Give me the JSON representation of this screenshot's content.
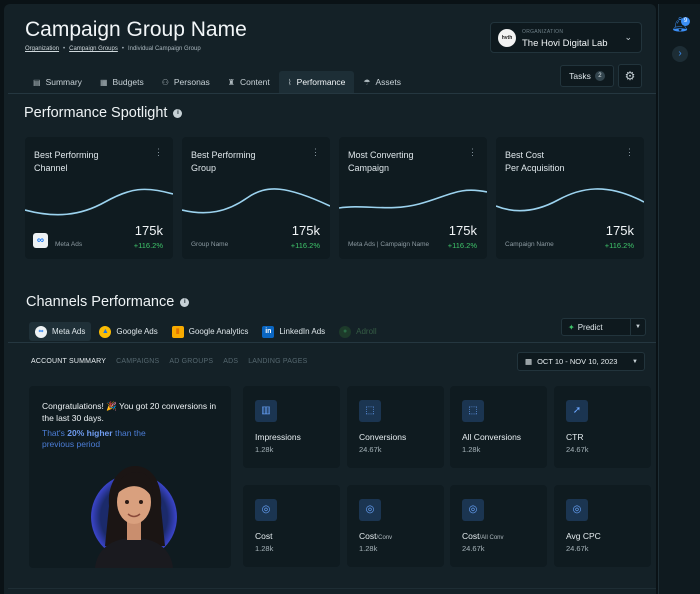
{
  "header": {
    "title": "Campaign Group Name",
    "breadcrumbs": [
      "Organization",
      "Campaign Groups",
      "Individual Campaign Group"
    ],
    "org_caption": "ORGANIZATION",
    "org_logo": "hvth",
    "org_name": "The Hovi Digital Lab"
  },
  "tabs": [
    {
      "label": "Summary",
      "icon": "summary-icon"
    },
    {
      "label": "Budgets",
      "icon": "budget-icon"
    },
    {
      "label": "Personas",
      "icon": "personas-icon"
    },
    {
      "label": "Content",
      "icon": "content-icon"
    },
    {
      "label": "Performance",
      "icon": "performance-icon",
      "active": true
    },
    {
      "label": "Assets",
      "icon": "assets-icon"
    }
  ],
  "tasks": {
    "label": "Tasks",
    "count": "2"
  },
  "spotlight": {
    "title": "Performance Spotlight",
    "cards": [
      {
        "line1": "Best Performing",
        "line2": "Channel",
        "value": "175k",
        "change": "+116.2%",
        "sub": "Meta Ads"
      },
      {
        "line1": "Best Performing",
        "line2": "Group",
        "value": "175k",
        "change": "+116.2%",
        "sub": "Group Name"
      },
      {
        "line1": "Most Converting",
        "line2": "Campaign",
        "value": "175k",
        "change": "+116.2%",
        "sub": "Meta Ads | Campaign Name"
      },
      {
        "line1": "Best Cost",
        "line2": "Per Acquisition",
        "value": "175k",
        "change": "+116.2%",
        "sub": "Campaign Name"
      }
    ]
  },
  "channels": {
    "title": "Channels Performance",
    "tabs": [
      "Meta Ads",
      "Google Ads",
      "Google Analytics",
      "LinkedIn Ads",
      "Adroll"
    ],
    "predict": "Predict",
    "subtabs": [
      "ACCOUNT SUMMARY",
      "CAMPAIGNS",
      "AD GROUPS",
      "ADS",
      "LANDING PAGES"
    ],
    "date_range": "OCT 10 - NOV 10, 2023"
  },
  "congrats": {
    "message": "Congratulations! 🎉 You got 20 conversions in the last 30 days.",
    "pre": "That's ",
    "highlight": "20% higher",
    "post": " than the previous period"
  },
  "stats": [
    {
      "label": "Impressions",
      "unit": "",
      "value": "1.28k",
      "icon": "bar-chart-icon"
    },
    {
      "label": "Conversions",
      "unit": "",
      "value": "24.67k",
      "icon": "conversion-icon"
    },
    {
      "label": "All Conversions",
      "unit": "",
      "value": "1.28k",
      "icon": "conversion-icon"
    },
    {
      "label": "CTR",
      "unit": "",
      "value": "24.67k",
      "icon": "cursor-icon"
    },
    {
      "label": "Cost",
      "unit": "",
      "value": "1.28k",
      "icon": "coins-icon"
    },
    {
      "label": "Cost",
      "unit": "/Conv",
      "value": "1.28k",
      "icon": "coins-icon"
    },
    {
      "label": "Cost",
      "unit": "/All Conv",
      "value": "24.67k",
      "icon": "coins-icon"
    },
    {
      "label": "Avg CPC",
      "unit": "",
      "value": "24.67k",
      "icon": "coins-icon"
    }
  ],
  "colors": {
    "accent": "#3b8ef5",
    "positive": "#3fc46a",
    "panel": "#0f1b20",
    "background": "#142127"
  }
}
